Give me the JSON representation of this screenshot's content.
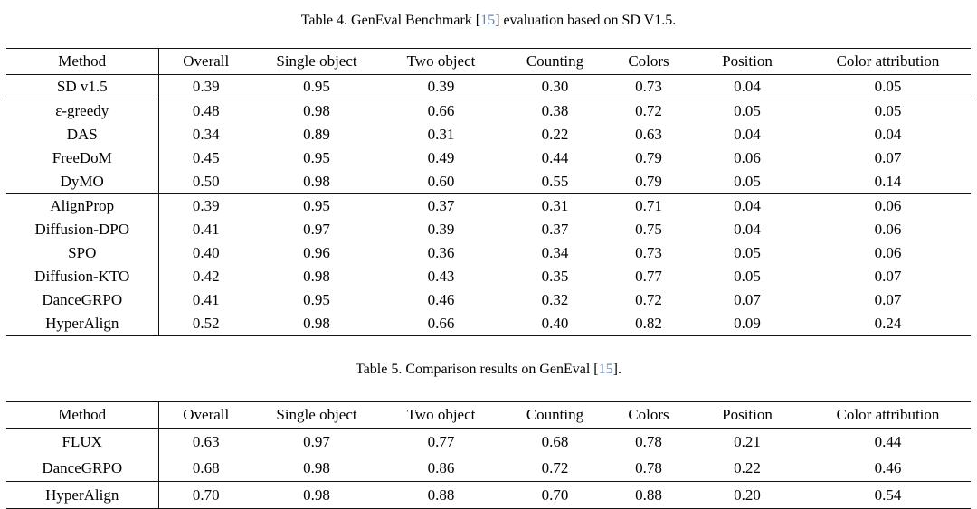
{
  "page": {
    "background": "#ffffff",
    "text_color": "#000000",
    "citation_color": "#6287c8"
  },
  "table4": {
    "caption": {
      "prefix": "Table 4. GenEval Benchmark [",
      "ref": "15",
      "suffix": "] evaluation based on SD V1.5."
    },
    "columns": [
      "Method",
      "Overall",
      "Single object",
      "Two object",
      "Counting",
      "Colors",
      "Position",
      "Color attribution"
    ],
    "groups": [
      [
        {
          "method": "SD v1.5",
          "values": [
            "0.39",
            "0.95",
            "0.39",
            "0.30",
            "0.73",
            "0.04",
            "0.05"
          ]
        }
      ],
      [
        {
          "method": "ε-greedy",
          "values": [
            "0.48",
            "0.98",
            "0.66",
            "0.38",
            "0.72",
            "0.05",
            "0.05"
          ]
        },
        {
          "method": "DAS",
          "values": [
            "0.34",
            "0.89",
            "0.31",
            "0.22",
            "0.63",
            "0.04",
            "0.04"
          ]
        },
        {
          "method": "FreeDoM",
          "values": [
            "0.45",
            "0.95",
            "0.49",
            "0.44",
            "0.79",
            "0.06",
            "0.07"
          ]
        },
        {
          "method": "DyMO",
          "values": [
            "0.50",
            "0.98",
            "0.60",
            "0.55",
            "0.79",
            "0.05",
            "0.14"
          ]
        }
      ],
      [
        {
          "method": "AlignProp",
          "values": [
            "0.39",
            "0.95",
            "0.37",
            "0.31",
            "0.71",
            "0.04",
            "0.06"
          ]
        },
        {
          "method": "Diffusion-DPO",
          "values": [
            "0.41",
            "0.97",
            "0.39",
            "0.37",
            "0.75",
            "0.04",
            "0.06"
          ]
        },
        {
          "method": "SPO",
          "values": [
            "0.40",
            "0.96",
            "0.36",
            "0.34",
            "0.73",
            "0.05",
            "0.06"
          ]
        },
        {
          "method": "Diffusion-KTO",
          "values": [
            "0.42",
            "0.98",
            "0.43",
            "0.35",
            "0.77",
            "0.05",
            "0.07"
          ]
        },
        {
          "method": "DanceGRPO",
          "values": [
            "0.41",
            "0.95",
            "0.46",
            "0.32",
            "0.72",
            "0.07",
            "0.07"
          ]
        },
        {
          "method": "HyperAlign",
          "values": [
            "0.52",
            "0.98",
            "0.66",
            "0.40",
            "0.82",
            "0.09",
            "0.24"
          ]
        }
      ]
    ]
  },
  "table5": {
    "caption": {
      "prefix": "Table 5. Comparison results on GenEval [",
      "ref": "15",
      "suffix": "]."
    },
    "columns": [
      "Method",
      "Overall",
      "Single object",
      "Two object",
      "Counting",
      "Colors",
      "Position",
      "Color attribution"
    ],
    "groups": [
      [
        {
          "method": "FLUX",
          "values": [
            "0.63",
            "0.97",
            "0.77",
            "0.68",
            "0.78",
            "0.21",
            "0.44"
          ]
        },
        {
          "method": "DanceGRPO",
          "values": [
            "0.68",
            "0.98",
            "0.86",
            "0.72",
            "0.78",
            "0.22",
            "0.46"
          ]
        }
      ],
      [
        {
          "method": "HyperAlign",
          "values": [
            "0.70",
            "0.98",
            "0.88",
            "0.70",
            "0.88",
            "0.20",
            "0.54"
          ]
        }
      ]
    ]
  }
}
